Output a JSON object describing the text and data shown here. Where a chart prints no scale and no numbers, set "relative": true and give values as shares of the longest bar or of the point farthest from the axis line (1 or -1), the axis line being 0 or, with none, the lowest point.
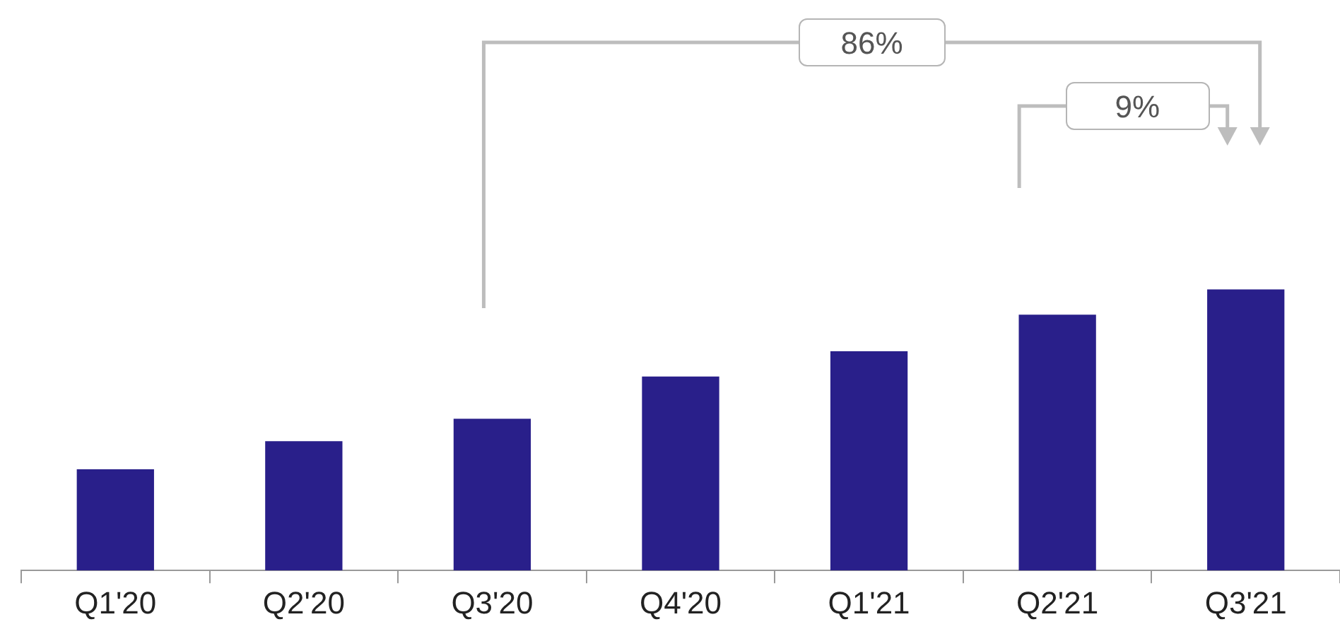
{
  "chart_data": {
    "type": "bar",
    "relative": true,
    "categories": [
      "Q1'20",
      "Q2'20",
      "Q3'20",
      "Q4'20",
      "Q1'21",
      "Q2'21",
      "Q3'21"
    ],
    "values": [
      0.36,
      0.46,
      0.54,
      0.69,
      0.78,
      0.91,
      1
    ],
    "color": "#291f8a",
    "annotations": [
      "86%",
      "9%"
    ],
    "grid": false,
    "legend": false
  }
}
